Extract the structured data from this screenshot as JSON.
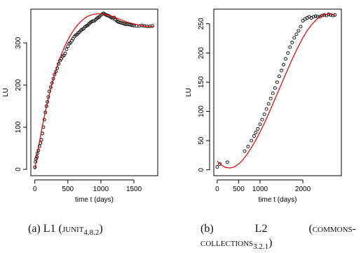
{
  "chart_data": [
    {
      "id": "l1",
      "type": "scatter",
      "caption": {
        "prefix": "(a) L1 (",
        "project": "junit",
        "version": "4.8.2",
        "suffix": ")"
      },
      "xlabel": "time t (days)",
      "ylabel": "LU",
      "xlim": [
        -60,
        1860
      ],
      "ylim": [
        -15,
        380
      ],
      "xticks": [
        0,
        500,
        1000,
        1500
      ],
      "yticks": [
        0,
        100,
        200,
        300
      ],
      "series": [
        {
          "kind": "points",
          "style": "open-circle",
          "color": "#000000",
          "x": [
            0,
            10,
            20,
            30,
            40,
            55,
            70,
            85,
            100,
            115,
            130,
            145,
            160,
            175,
            190,
            205,
            220,
            240,
            260,
            280,
            300,
            320,
            340,
            360,
            380,
            400,
            420,
            440,
            460,
            480,
            500,
            520,
            540,
            560,
            580,
            600,
            620,
            640,
            660,
            680,
            700,
            720,
            740,
            760,
            780,
            800,
            820,
            840,
            860,
            880,
            900,
            920,
            940,
            960,
            980,
            1000,
            1020,
            1040,
            1060,
            1080,
            1100,
            1120,
            1140,
            1160,
            1180,
            1200,
            1220,
            1240,
            1260,
            1280,
            1300,
            1320,
            1340,
            1360,
            1380,
            1400,
            1420,
            1440,
            1460,
            1480,
            1500,
            1540,
            1580,
            1620,
            1660,
            1700,
            1740,
            1780
          ],
          "y": [
            5,
            18,
            25,
            30,
            38,
            45,
            55,
            62,
            70,
            85,
            100,
            118,
            135,
            150,
            160,
            172,
            185,
            195,
            205,
            215,
            225,
            232,
            240,
            250,
            258,
            262,
            268,
            270,
            275,
            285,
            292,
            298,
            300,
            305,
            310,
            315,
            318,
            320,
            324,
            326,
            330,
            332,
            334,
            338,
            340,
            342,
            345,
            348,
            350,
            352,
            352,
            355,
            358,
            360,
            362,
            366,
            368,
            370,
            368,
            366,
            365,
            364,
            362,
            360,
            358,
            360,
            355,
            352,
            350,
            349,
            348,
            347,
            346,
            345,
            344,
            345,
            344,
            343,
            342,
            342,
            341,
            340,
            340,
            341,
            340,
            339,
            339,
            340
          ]
        },
        {
          "kind": "line",
          "color": "#e00000",
          "x": [
            0,
            50,
            100,
            150,
            200,
            250,
            300,
            350,
            400,
            450,
            500,
            550,
            600,
            650,
            700,
            750,
            800,
            850,
            900,
            950,
            1000,
            1050,
            1100,
            1150,
            1200,
            1250,
            1300,
            1350,
            1400,
            1450,
            1500,
            1550,
            1600,
            1650,
            1700,
            1750,
            1800
          ],
          "y": [
            0,
            48,
            91,
            130,
            165,
            197,
            225,
            250,
            272,
            291,
            307,
            321,
            333,
            343,
            351,
            358,
            363,
            366,
            368,
            369,
            369,
            368,
            366,
            364,
            361,
            358,
            355,
            352,
            349,
            347,
            345,
            343,
            341,
            340,
            339,
            339,
            338
          ]
        }
      ]
    },
    {
      "id": "l2",
      "type": "scatter",
      "caption": {
        "prefix": "(b)",
        "word": "L2",
        "open": "(",
        "project_a": "commons-",
        "project_b": "collections",
        "version": "3.2.1",
        "suffix": ")"
      },
      "xlabel": "time t (days)",
      "ylabel": "LU",
      "xlim": [
        -80,
        2900
      ],
      "ylim": [
        -10,
        275
      ],
      "xticks": [
        0,
        500,
        1000,
        2000
      ],
      "yticks": [
        0,
        50,
        100,
        150,
        200,
        250
      ],
      "series": [
        {
          "kind": "points",
          "style": "open-circle",
          "color": "#000000",
          "x": [
            0,
            60,
            240,
            640,
            720,
            800,
            860,
            900,
            950,
            1000,
            1050,
            1100,
            1150,
            1200,
            1250,
            1300,
            1350,
            1400,
            1450,
            1500,
            1550,
            1600,
            1650,
            1700,
            1750,
            1800,
            1850,
            1900,
            1950,
            2000,
            2050,
            2100,
            2150,
            2200,
            2250,
            2300,
            2350,
            2400,
            2450,
            2500,
            2550,
            2600,
            2650,
            2700,
            2750
          ],
          "y": [
            5,
            10,
            13,
            32,
            40,
            50,
            58,
            64,
            70,
            78,
            86,
            95,
            104,
            113,
            122,
            131,
            140,
            150,
            160,
            170,
            180,
            190,
            200,
            210,
            218,
            226,
            232,
            238,
            245,
            255,
            258,
            260,
            262,
            260,
            262,
            263,
            262,
            262,
            264,
            265,
            264,
            266,
            265,
            264,
            265
          ]
        },
        {
          "kind": "line",
          "color": "#e00000",
          "x": [
            0,
            100,
            200,
            300,
            400,
            500,
            600,
            700,
            800,
            900,
            1000,
            1100,
            1200,
            1300,
            1400,
            1500,
            1600,
            1700,
            1800,
            1900,
            2000,
            2100,
            2200,
            2300,
            2400,
            2500,
            2600,
            2700,
            2750
          ],
          "y": [
            15,
            8,
            4,
            3,
            5,
            10,
            17,
            27,
            38,
            51,
            65,
            80,
            96,
            113,
            130,
            147,
            164,
            181,
            197,
            212,
            226,
            238,
            248,
            256,
            262,
            266,
            267,
            266,
            264
          ]
        }
      ]
    }
  ]
}
